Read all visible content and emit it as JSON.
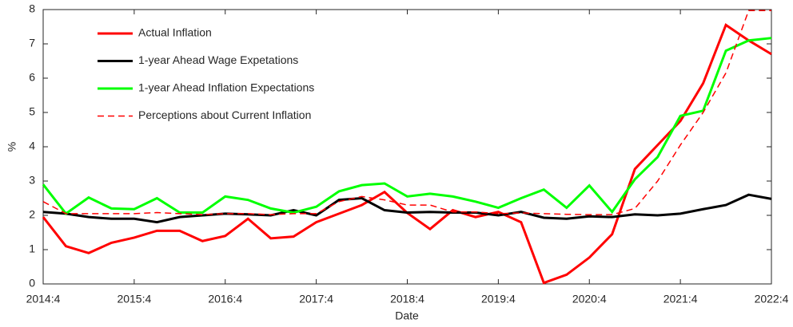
{
  "chart_data": {
    "type": "line",
    "xlabel": "Date",
    "ylabel": "%",
    "categories": [
      "2014:4",
      null,
      null,
      null,
      "2015:4",
      null,
      null,
      null,
      "2016:4",
      null,
      null,
      null,
      "2017:4",
      null,
      null,
      null,
      "2018:4",
      null,
      null,
      null,
      "2019:4",
      null,
      null,
      null,
      "2020:4",
      null,
      null,
      null,
      "2021:4",
      null,
      null,
      null,
      "2022:4"
    ],
    "ylim": [
      0,
      8
    ],
    "yticks": [
      0,
      1,
      2,
      3,
      4,
      5,
      6,
      7,
      8
    ],
    "legend": "upper-left",
    "series": [
      {
        "name": "Actual Inflation",
        "color": "#ff0000",
        "dashed": false,
        "values": [
          1.95,
          1.1,
          0.9,
          1.2,
          1.35,
          1.55,
          1.55,
          1.25,
          1.4,
          1.9,
          1.33,
          1.38,
          1.8,
          2.05,
          2.3,
          2.68,
          2.07,
          1.6,
          2.15,
          1.95,
          2.1,
          1.8,
          0.03,
          0.27,
          0.77,
          1.45,
          3.35,
          4.05,
          4.75,
          5.85,
          7.55,
          7.1,
          6.7
        ]
      },
      {
        "name": "1-year Ahead Wage Expetations",
        "color": "#000000",
        "dashed": false,
        "values": [
          2.1,
          2.05,
          1.95,
          1.9,
          1.9,
          1.8,
          1.95,
          2.0,
          2.05,
          2.03,
          2.0,
          2.15,
          2.0,
          2.45,
          2.5,
          2.15,
          2.08,
          2.1,
          2.08,
          2.08,
          2.0,
          2.1,
          1.93,
          1.9,
          1.97,
          1.95,
          2.03,
          2.0,
          2.05,
          2.18,
          2.3,
          2.6,
          2.48
        ]
      },
      {
        "name": "1-year Ahead Inflation Expectations",
        "color": "#00ff00",
        "dashed": false,
        "values": [
          2.9,
          2.05,
          2.52,
          2.2,
          2.18,
          2.5,
          2.08,
          2.08,
          2.55,
          2.45,
          2.2,
          2.08,
          2.25,
          2.7,
          2.88,
          2.93,
          2.55,
          2.63,
          2.55,
          2.4,
          2.22,
          2.5,
          2.75,
          2.22,
          2.87,
          2.1,
          3.05,
          3.7,
          4.9,
          5.05,
          6.8,
          7.1,
          7.17
        ]
      },
      {
        "name": "Perceptions about Current Inflation",
        "color": "#ff0000",
        "dashed": true,
        "values": [
          2.4,
          2.05,
          2.05,
          2.05,
          2.05,
          2.08,
          2.05,
          2.02,
          2.05,
          2.05,
          2.02,
          2.05,
          2.05,
          2.4,
          2.55,
          2.45,
          2.3,
          2.3,
          2.1,
          2.1,
          2.05,
          2.07,
          2.05,
          2.03,
          2.02,
          2.02,
          2.2,
          3.0,
          4.05,
          5.0,
          6.15,
          7.97,
          7.97
        ]
      }
    ]
  }
}
